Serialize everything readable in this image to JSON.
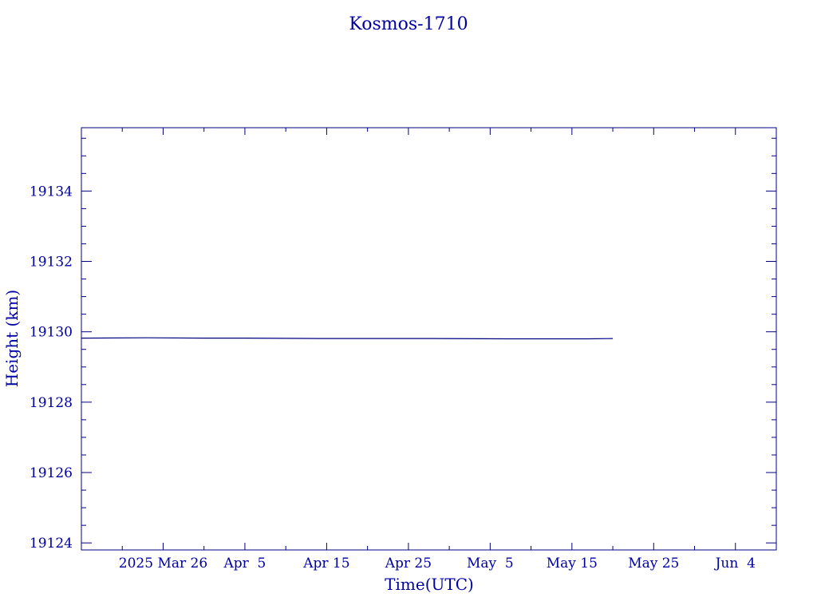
{
  "chart_data": {
    "type": "line",
    "title": "Kosmos-1710",
    "xlabel": "Time(UTC)",
    "ylabel": "Height (km)",
    "x_ticks": [
      "2025 Mar 26",
      "Apr  5",
      "Apr 15",
      "Apr 25",
      "May  5",
      "May 15",
      "May 25",
      "Jun  4"
    ],
    "y_ticks": [
      "19124",
      "19126",
      "19128",
      "19130",
      "19132",
      "19134"
    ],
    "xlim": [
      "2025-03-16",
      "2025-06-09"
    ],
    "ylim": [
      19123.8,
      19135.8
    ],
    "grid": false,
    "x": [
      "2025-03-16",
      "2025-03-24",
      "2025-03-31",
      "2025-04-05",
      "2025-04-14",
      "2025-04-17",
      "2025-04-28",
      "2025-05-07",
      "2025-05-17",
      "2025-05-20"
    ],
    "series": [
      {
        "values": [
          19129.82,
          19129.83,
          19129.82,
          19129.82,
          19129.81,
          19129.81,
          19129.81,
          19129.8,
          19129.8,
          19129.81
        ]
      }
    ],
    "colors": {
      "line": "#000080",
      "axes": "#000080",
      "text": "#0000a0"
    }
  }
}
